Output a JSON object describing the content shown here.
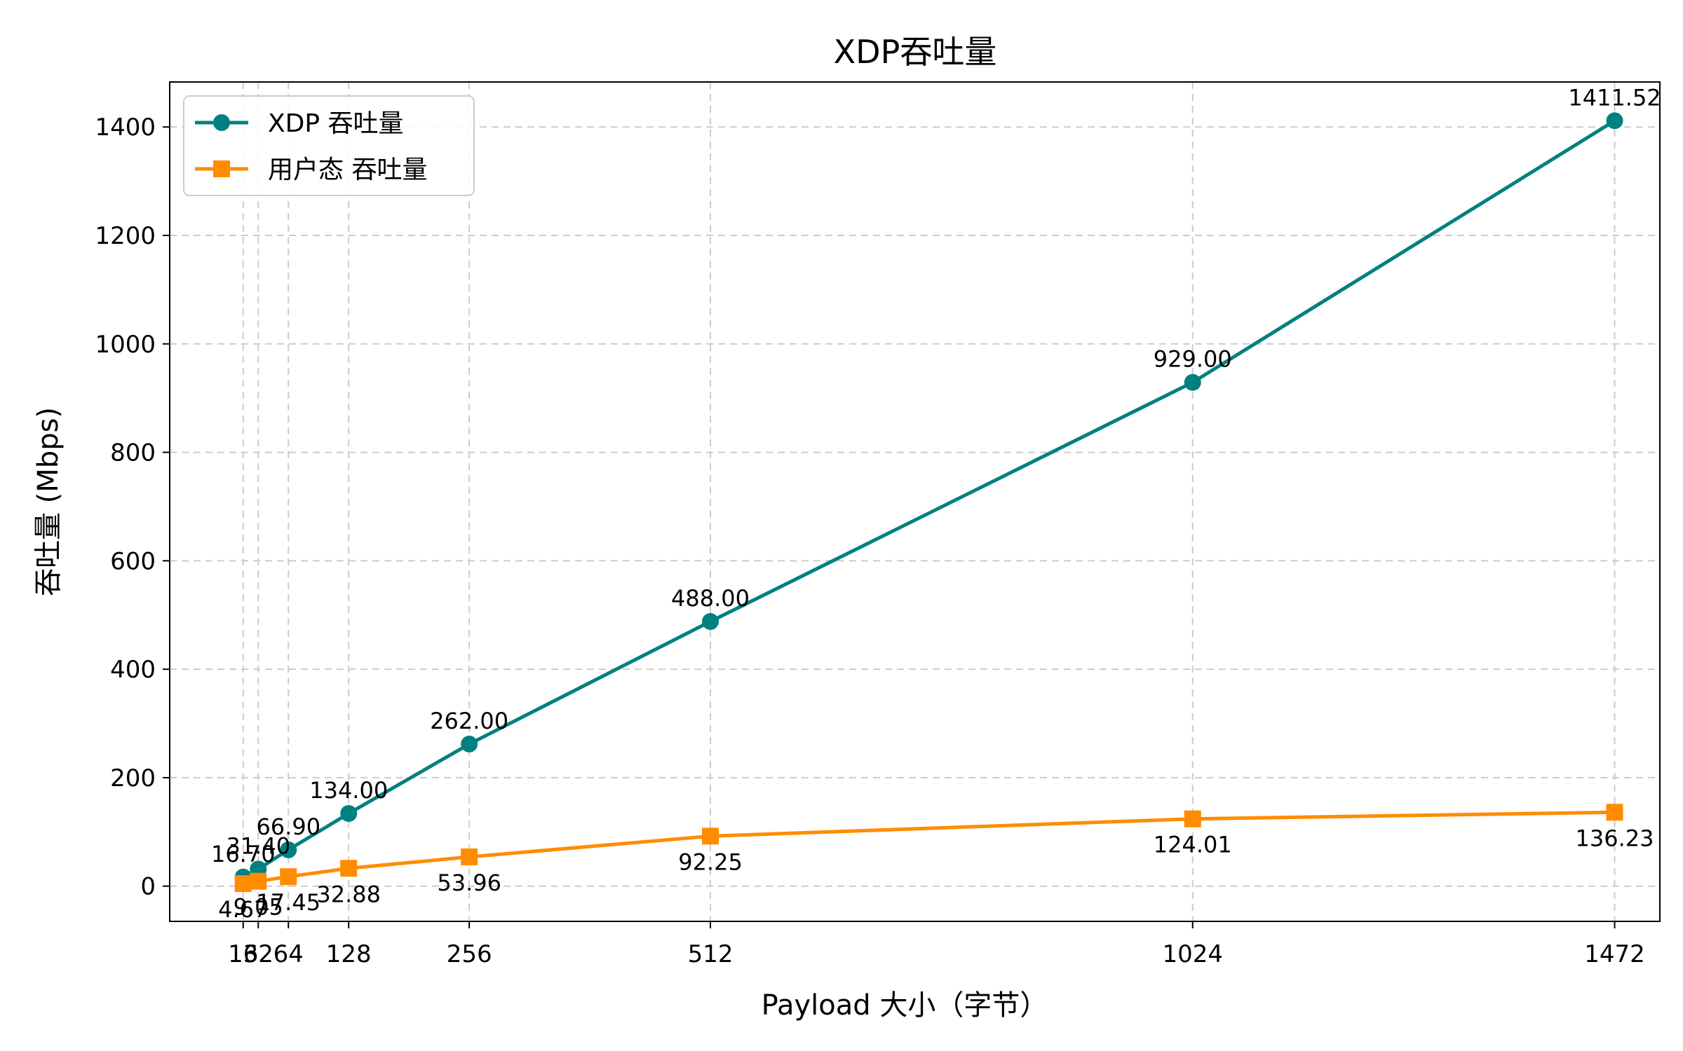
{
  "chart_data": {
    "type": "line",
    "title": "XDP吞吐量",
    "xlabel": "Payload 大小（字节）",
    "ylabel": "吞吐量 (Mbps)",
    "x": [
      16,
      32,
      64,
      128,
      256,
      512,
      1024,
      1472
    ],
    "x_tick_labels": [
      "16",
      "32",
      "64",
      "128",
      "256",
      "512",
      "1024",
      "1472"
    ],
    "xlim": [
      -62,
      1520
    ],
    "ylim": [
      -65,
      1483
    ],
    "y_ticks": [
      0,
      200,
      400,
      600,
      800,
      1000,
      1200,
      1400
    ],
    "y_tick_labels": [
      "0",
      "200",
      "400",
      "600",
      "800",
      "1000",
      "1200",
      "1400"
    ],
    "grid": true,
    "legend_position": "top-left",
    "series": [
      {
        "name": "XDP 吞吐量",
        "color": "#008080",
        "marker": "circle",
        "label_position": "above",
        "values": [
          16.7,
          31.4,
          66.9,
          134.0,
          262.0,
          488.0,
          929.0,
          1411.52
        ],
        "labels": [
          "16.70",
          "31.40",
          "66.90",
          "134.00",
          "262.00",
          "488.00",
          "929.00",
          "1411.52"
        ]
      },
      {
        "name": "用户态 吞吐量",
        "color": "#ff8c00",
        "marker": "square",
        "label_position": "below",
        "values": [
          4.67,
          9.05,
          17.45,
          32.88,
          53.96,
          92.25,
          124.01,
          136.23
        ],
        "labels": [
          "4.67",
          "9.05",
          "17.45",
          "32.88",
          "53.96",
          "92.25",
          "124.01",
          "136.23"
        ]
      }
    ]
  }
}
